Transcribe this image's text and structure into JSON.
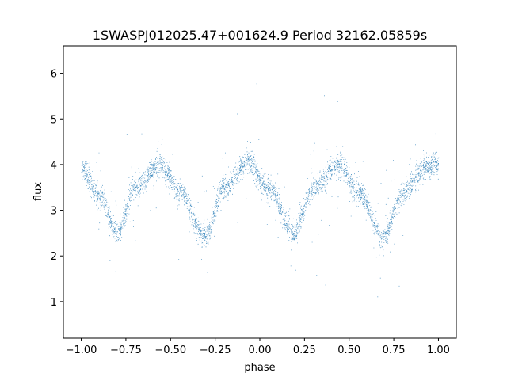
{
  "chart_data": {
    "type": "scatter",
    "title": "1SWASPJ012025.47+001624.9 Period 32162.05859s",
    "xlabel": "phase",
    "ylabel": "flux",
    "xlim": [
      -1.1,
      1.1
    ],
    "ylim": [
      0.2,
      6.6
    ],
    "x_ticks": [
      -1.0,
      -0.75,
      -0.5,
      -0.25,
      0.0,
      0.25,
      0.5,
      0.75,
      1.0
    ],
    "x_tick_labels": [
      "−1.00",
      "−0.75",
      "−0.50",
      "−0.25",
      "0.00",
      "0.25",
      "0.50",
      "0.75",
      "1.00"
    ],
    "y_ticks": [
      1,
      2,
      3,
      4,
      5,
      6
    ],
    "y_tick_labels": [
      "1",
      "2",
      "3",
      "4",
      "5",
      "6"
    ],
    "grid": false,
    "marker_color": "#1f77b4",
    "series": [
      {
        "name": "",
        "points_description": "phase-folded light curve, ~25000 points",
        "phase_range": [
          -1.0,
          1.0
        ],
        "envelope_x": [
          -1.0,
          -0.9,
          -0.8,
          -0.7,
          -0.56,
          -0.45,
          -0.31,
          -0.2,
          -0.06,
          0.05,
          0.19,
          0.3,
          0.44,
          0.55,
          0.69,
          0.8,
          0.94,
          1.0
        ],
        "envelope_y": [
          3.9,
          3.3,
          2.5,
          3.5,
          4.0,
          3.4,
          2.4,
          3.5,
          4.05,
          3.45,
          2.5,
          3.5,
          4.0,
          3.4,
          2.4,
          3.4,
          3.95,
          4.0
        ],
        "scatter": 0.12
      }
    ]
  }
}
